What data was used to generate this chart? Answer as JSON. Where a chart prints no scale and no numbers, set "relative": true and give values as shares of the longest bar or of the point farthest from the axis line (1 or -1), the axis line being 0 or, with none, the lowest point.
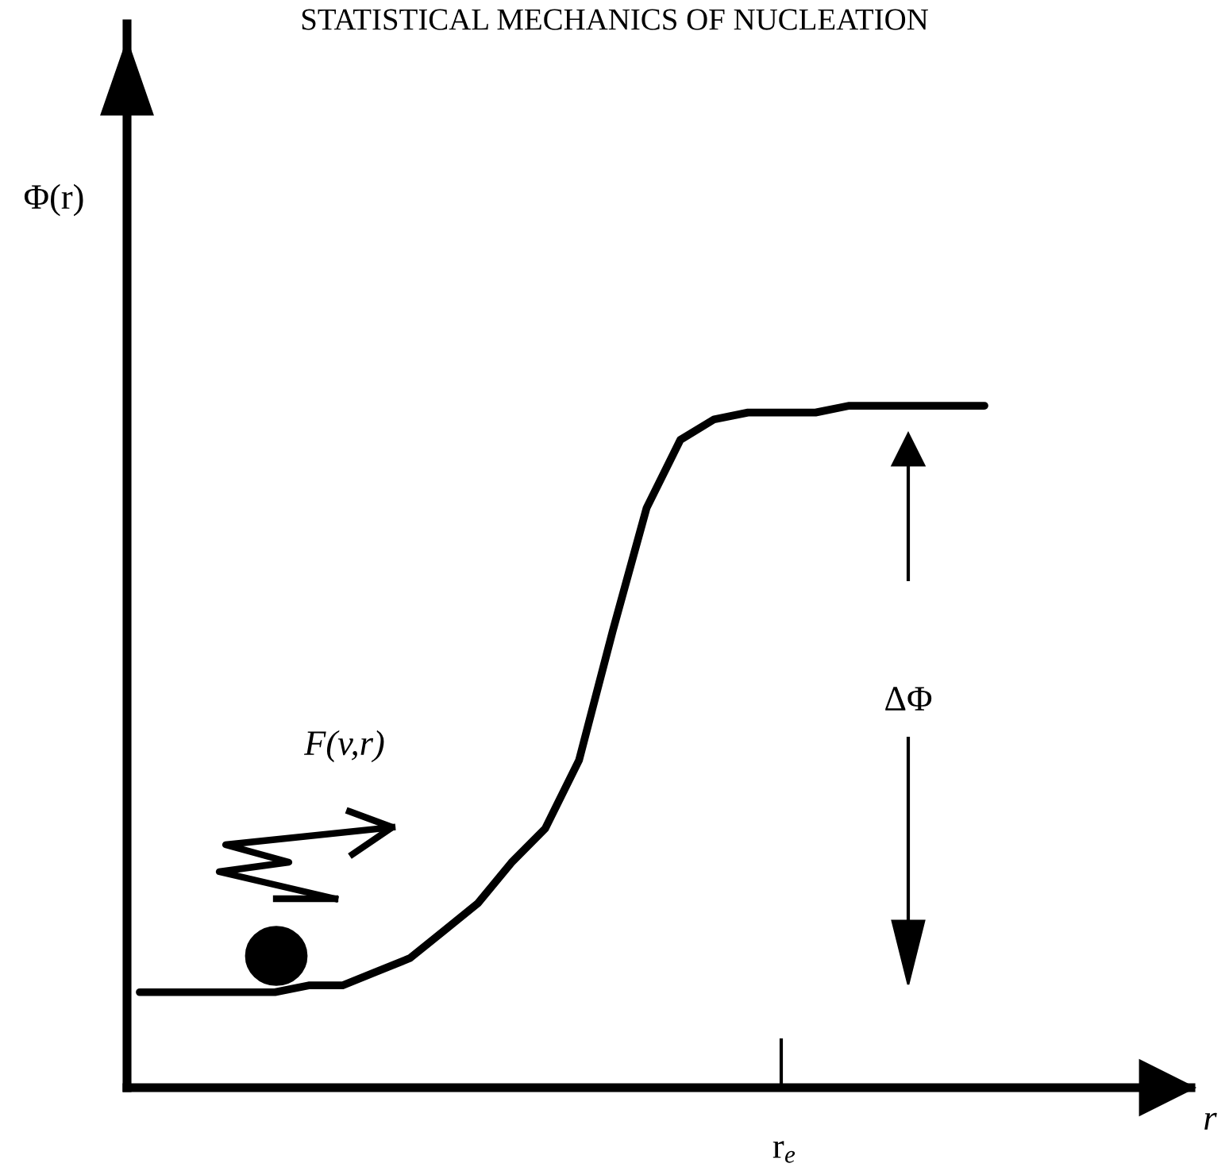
{
  "chart_data": {
    "type": "line",
    "title": "STATISTICAL MECHANICS OF NUCLEATION",
    "relative": true,
    "categories": [
      null,
      null,
      null,
      null,
      null,
      null,
      null,
      null,
      null,
      null,
      null,
      null,
      null,
      null,
      null,
      null,
      null,
      null,
      null,
      null,
      null,
      null,
      null,
      null,
      null,
      null
    ],
    "series": [
      {
        "color": "#000000",
        "values": [
          0.14,
          0.14,
          0.14,
          0.14,
          0.14,
          0.15,
          0.15,
          0.17,
          0.19,
          0.23,
          0.27,
          0.33,
          0.38,
          0.48,
          0.67,
          0.85,
          0.95,
          0.98,
          0.99,
          0.99,
          0.99,
          1,
          1,
          1,
          1,
          1
        ]
      }
    ],
    "annotations": [
      "F(v,r)",
      "ΔΦ",
      "r$_{e}$",
      "Φ(r)",
      "r"
    ],
    "marker": "none",
    "line_style": "solid"
  }
}
